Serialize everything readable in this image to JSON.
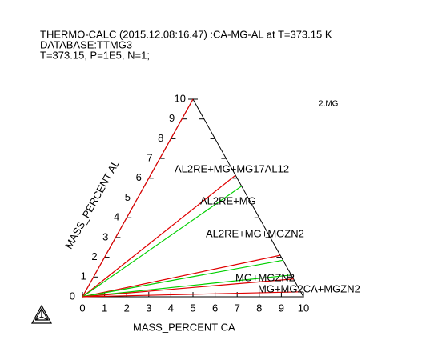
{
  "chart_data": {
    "type": "ternary",
    "title_lines": [
      "THERMO-CALC (2015.12.08:16.47) :CA-MG-AL at T=373.15 K",
      "DATABASE:TTMG3",
      "T=373.15, P=1E5, N=1;"
    ],
    "xlabel": "MASS_PERCENT CA",
    "ylabel": "MASS_PERCENT AL",
    "xlim": [
      0,
      10
    ],
    "ylim": [
      0,
      10
    ],
    "xticks": [
      0,
      1,
      2,
      3,
      4,
      5,
      6,
      7,
      8,
      9,
      10
    ],
    "yticks": [
      0,
      1,
      2,
      3,
      4,
      5,
      6,
      7,
      8,
      9,
      10
    ],
    "series": [
      {
        "color": "#e00000",
        "x": [
          0,
          0
        ],
        "values": [
          0,
          10
        ]
      },
      {
        "color": "#e00000",
        "x": [
          0,
          3.85
        ],
        "values": [
          0,
          6.15
        ]
      },
      {
        "color": "#00d000",
        "x": [
          0,
          4.4
        ],
        "values": [
          0,
          5.6
        ]
      },
      {
        "color": "#e00000",
        "x": [
          0,
          7.9
        ],
        "values": [
          0,
          2.1
        ]
      },
      {
        "color": "#00d000",
        "x": [
          0,
          8.15
        ],
        "values": [
          0,
          1.85
        ]
      },
      {
        "color": "#00d000",
        "x": [
          0,
          8.9
        ],
        "values": [
          0,
          1.1
        ]
      },
      {
        "color": "#e00000",
        "x": [
          0,
          9.1
        ],
        "values": [
          0,
          0.9
        ]
      },
      {
        "color": "#e00000",
        "x": [
          0,
          9.75
        ],
        "values": [
          0,
          0.25
        ]
      }
    ],
    "annotations": [
      "AL2RE+MG+MG17AL12",
      "AL2RE+MG",
      "AL2RE+MG+MGZN2",
      "MG+MGZN2",
      "MG+MG2CA+MGZN2"
    ],
    "plot_label": {
      "text": "2:MG",
      "color": "#0000cc"
    }
  }
}
